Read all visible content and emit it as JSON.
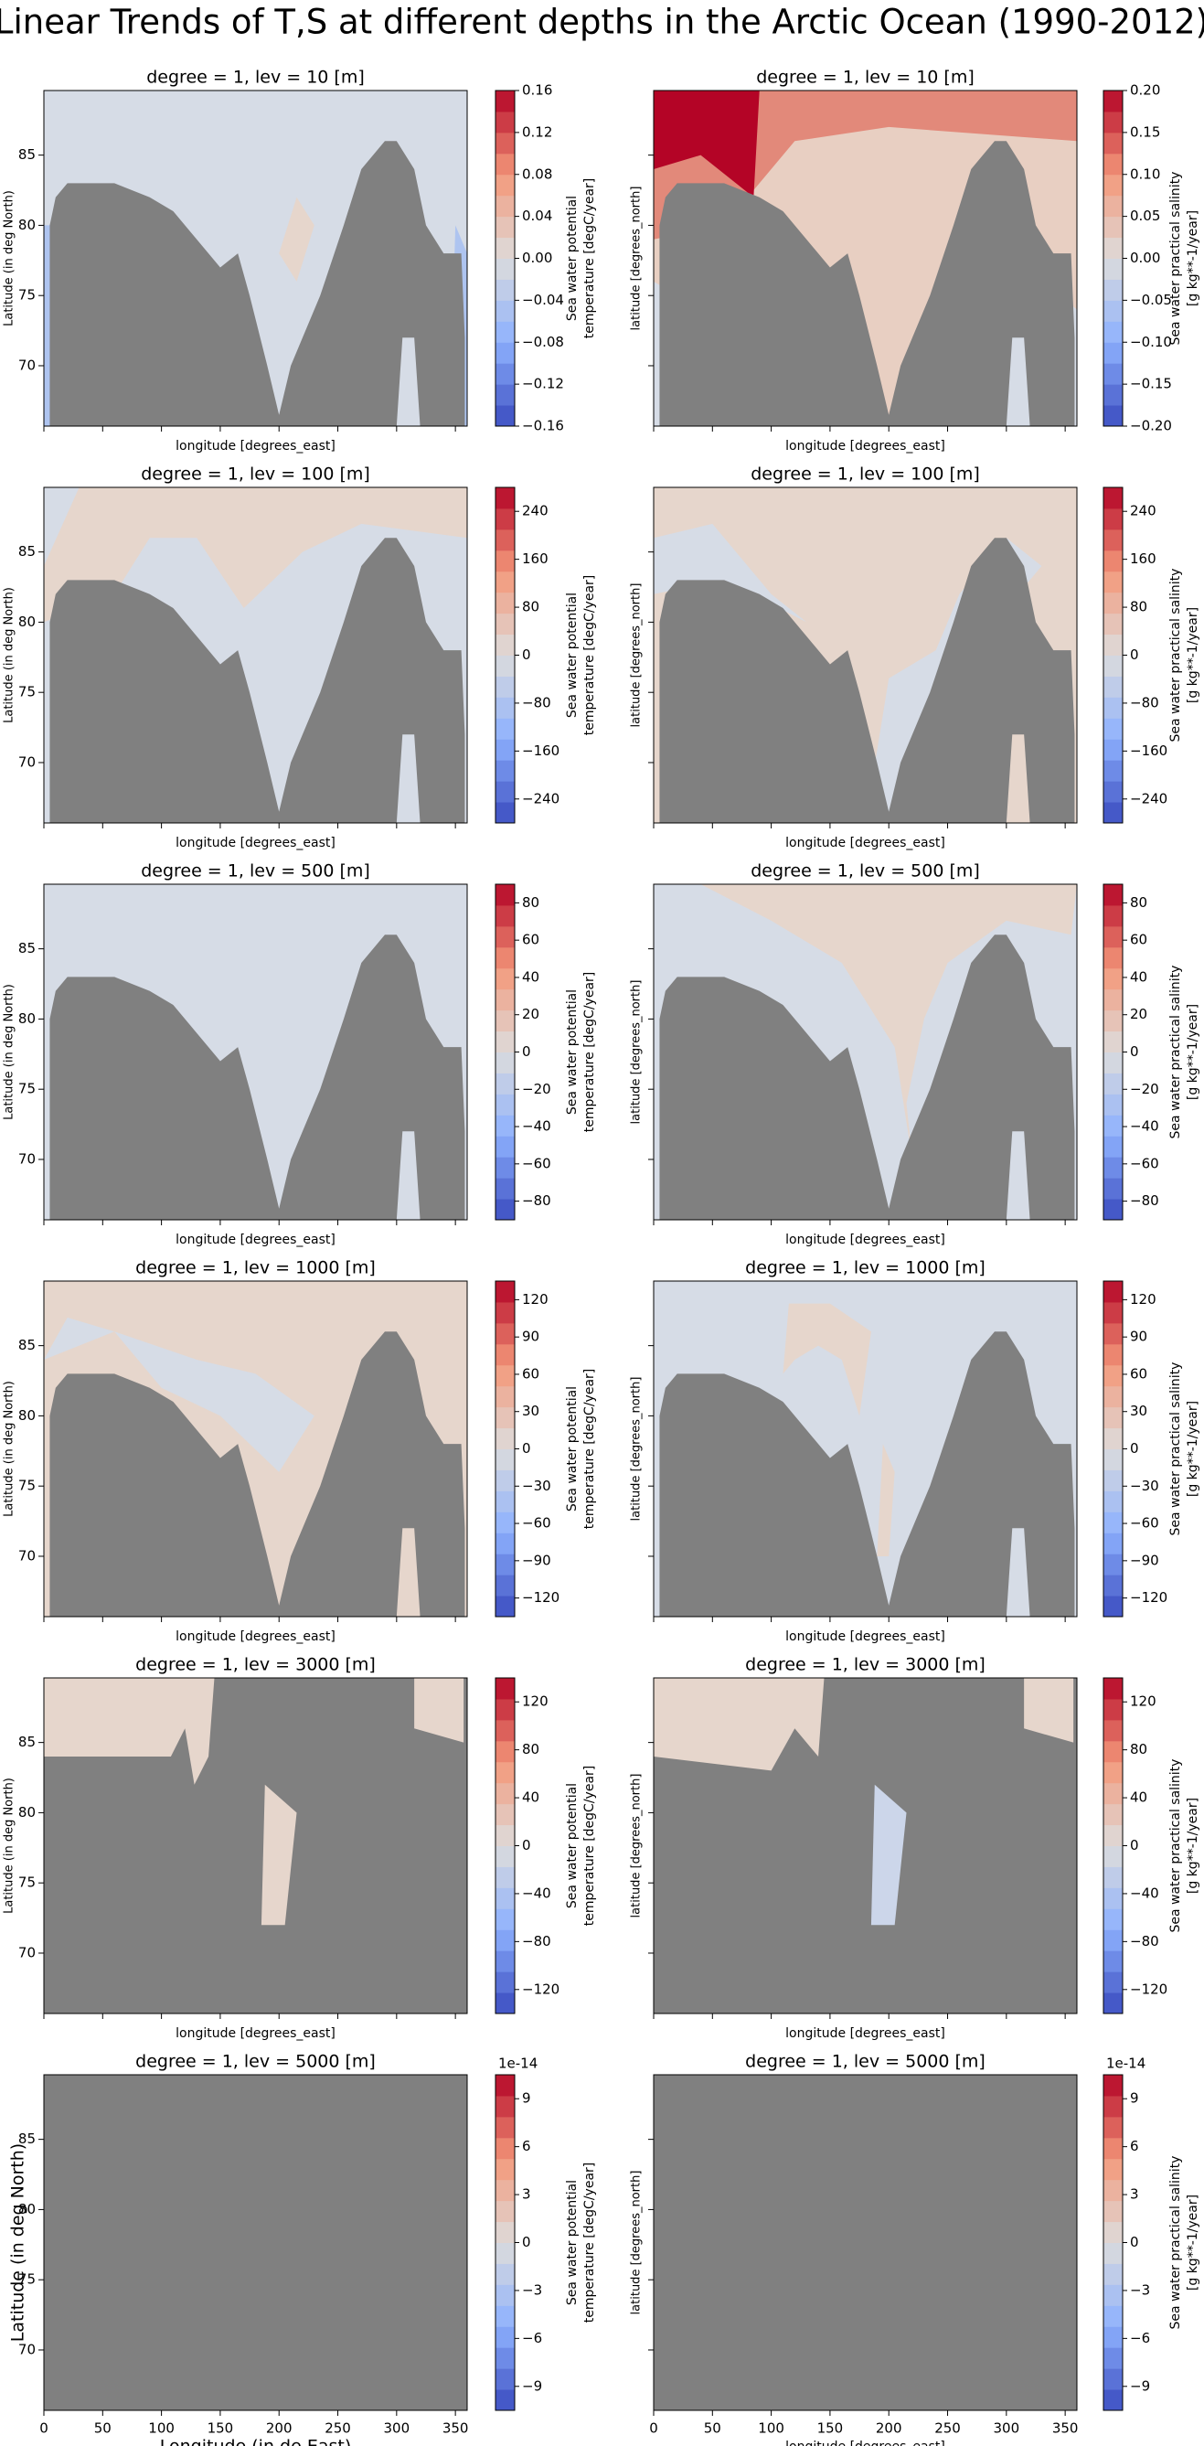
{
  "title": "Linear Trends of T,S at different depths in the Arctic Ocean (1990-2012)",
  "chart_data": [
    {
      "type": "contour",
      "title": "degree = 1, lev = 10 [m]",
      "xlabel": "longitude [degrees_east]",
      "ylabel": "Latitude (in deg North)",
      "xlim": [
        0,
        360
      ],
      "ylim": [
        65.7,
        89.6
      ],
      "xticks": [
        0,
        50,
        100,
        150,
        200,
        250,
        300,
        350
      ],
      "yticks": [
        70,
        75,
        80,
        85
      ],
      "colorbar_label": [
        "Sea water potential",
        "temperature [degC/year]"
      ],
      "clim": [
        -0.16,
        0.16
      ],
      "cticks": [
        0.16,
        0.12,
        0.08,
        0.04,
        {
          "value": 0,
          "label": "0.00"
        },
        {
          "value": -0.04,
          "label": "−0.04"
        },
        {
          "value": -0.08,
          "label": "−0.08"
        },
        {
          "value": -0.12,
          "label": "−0.12"
        },
        {
          "value": -0.16,
          "label": "−0.16"
        }
      ]
    },
    {
      "type": "contour",
      "title": "degree = 1, lev = 10 [m]",
      "xlabel": "longitude [degrees_east]",
      "ylabel": "latitude [degrees_north]",
      "xlim": [
        0,
        360
      ],
      "ylim": [
        65.7,
        89.6
      ],
      "xticks": [
        0,
        50,
        100,
        150,
        200,
        250,
        300,
        350
      ],
      "yticks": [
        70,
        75,
        80,
        85
      ],
      "colorbar_label": [
        "Sea water practical salinity",
        "[g kg**-1/year]"
      ],
      "clim": [
        -0.2,
        0.2
      ],
      "cticks": [
        {
          "value": 0.2,
          "label": "0.20"
        },
        0.15,
        {
          "value": 0.1,
          "label": "0.10"
        },
        0.05,
        {
          "value": 0,
          "label": "0.00"
        },
        {
          "value": -0.05,
          "label": "−0.05"
        },
        {
          "value": -0.1,
          "label": "−0.10"
        },
        {
          "value": -0.15,
          "label": "−0.15"
        },
        {
          "value": -0.2,
          "label": "−0.20"
        }
      ]
    },
    {
      "type": "contour",
      "title": "degree = 1, lev = 100 [m]",
      "xlabel": "longitude [degrees_east]",
      "ylabel": "Latitude (in deg North)",
      "xlim": [
        0,
        360
      ],
      "ylim": [
        65.7,
        89.6
      ],
      "xticks": [
        0,
        50,
        100,
        150,
        200,
        250,
        300,
        350
      ],
      "yticks": [
        70,
        75,
        80,
        85
      ],
      "colorbar_label": [
        "Sea water potential",
        "temperature [degC/year]"
      ],
      "clim": [
        -280,
        280
      ],
      "cticks": [
        240,
        160,
        80,
        0,
        {
          "value": -80,
          "label": "−80"
        },
        {
          "value": -160,
          "label": "−160"
        },
        {
          "value": -240,
          "label": "−240"
        }
      ]
    },
    {
      "type": "contour",
      "title": "degree = 1, lev = 100 [m]",
      "xlabel": "longitude [degrees_east]",
      "ylabel": "latitude [degrees_north]",
      "xlim": [
        0,
        360
      ],
      "ylim": [
        65.7,
        89.6
      ],
      "xticks": [
        0,
        50,
        100,
        150,
        200,
        250,
        300,
        350
      ],
      "yticks": [
        70,
        75,
        80,
        85
      ],
      "colorbar_label": [
        "Sea water practical salinity",
        "[g kg**-1/year]"
      ],
      "clim": [
        -280,
        280
      ],
      "cticks": [
        240,
        160,
        80,
        0,
        {
          "value": -80,
          "label": "−80"
        },
        {
          "value": -160,
          "label": "−160"
        },
        {
          "value": -240,
          "label": "−240"
        }
      ]
    },
    {
      "type": "contour",
      "title": "degree = 1, lev = 500 [m]",
      "xlabel": "longitude [degrees_east]",
      "ylabel": "Latitude (in deg North)",
      "xlim": [
        0,
        360
      ],
      "ylim": [
        65.7,
        89.6
      ],
      "xticks": [
        0,
        50,
        100,
        150,
        200,
        250,
        300,
        350
      ],
      "yticks": [
        70,
        75,
        80,
        85
      ],
      "colorbar_label": [
        "Sea water potential",
        "temperature [degC/year]"
      ],
      "clim": [
        -90,
        90
      ],
      "cticks": [
        80,
        60,
        40,
        20,
        0,
        {
          "value": -20,
          "label": "−20"
        },
        {
          "value": -40,
          "label": "−40"
        },
        {
          "value": -60,
          "label": "−60"
        },
        {
          "value": -80,
          "label": "−80"
        }
      ]
    },
    {
      "type": "contour",
      "title": "degree = 1, lev = 500 [m]",
      "xlabel": "longitude [degrees_east]",
      "ylabel": "latitude [degrees_north]",
      "xlim": [
        0,
        360
      ],
      "ylim": [
        65.7,
        89.6
      ],
      "xticks": [
        0,
        50,
        100,
        150,
        200,
        250,
        300,
        350
      ],
      "yticks": [
        70,
        75,
        80,
        85
      ],
      "colorbar_label": [
        "Sea water practical salinity",
        "[g kg**-1/year]"
      ],
      "clim": [
        -90,
        90
      ],
      "cticks": [
        80,
        60,
        40,
        20,
        0,
        {
          "value": -20,
          "label": "−20"
        },
        {
          "value": -40,
          "label": "−40"
        },
        {
          "value": -60,
          "label": "−60"
        },
        {
          "value": -80,
          "label": "−80"
        }
      ]
    },
    {
      "type": "contour",
      "title": "degree = 1, lev = 1000 [m]",
      "xlabel": "longitude [degrees_east]",
      "ylabel": "Latitude (in deg North)",
      "xlim": [
        0,
        360
      ],
      "ylim": [
        65.7,
        89.6
      ],
      "xticks": [
        0,
        50,
        100,
        150,
        200,
        250,
        300,
        350
      ],
      "yticks": [
        70,
        75,
        80,
        85
      ],
      "colorbar_label": [
        "Sea water potential",
        "temperature [degC/year]"
      ],
      "clim": [
        -135,
        135
      ],
      "cticks": [
        120,
        90,
        60,
        30,
        0,
        {
          "value": -30,
          "label": "−30"
        },
        {
          "value": -60,
          "label": "−60"
        },
        {
          "value": -90,
          "label": "−90"
        },
        {
          "value": -120,
          "label": "−120"
        }
      ]
    },
    {
      "type": "contour",
      "title": "degree = 1, lev = 1000 [m]",
      "xlabel": "longitude [degrees_east]",
      "ylabel": "latitude [degrees_north]",
      "xlim": [
        0,
        360
      ],
      "ylim": [
        65.7,
        89.6
      ],
      "xticks": [
        0,
        50,
        100,
        150,
        200,
        250,
        300,
        350
      ],
      "yticks": [
        70,
        75,
        80,
        85
      ],
      "colorbar_label": [
        "Sea water practical salinity",
        "[g kg**-1/year]"
      ],
      "clim": [
        -135,
        135
      ],
      "cticks": [
        120,
        90,
        60,
        30,
        0,
        {
          "value": -30,
          "label": "−30"
        },
        {
          "value": -60,
          "label": "−60"
        },
        {
          "value": -90,
          "label": "−90"
        },
        {
          "value": -120,
          "label": "−120"
        }
      ]
    },
    {
      "type": "contour",
      "title": "degree = 1, lev = 3000 [m]",
      "xlabel": "longitude [degrees_east]",
      "ylabel": "Latitude (in deg North)",
      "xlim": [
        0,
        360
      ],
      "ylim": [
        65.7,
        89.6
      ],
      "xticks": [
        0,
        50,
        100,
        150,
        200,
        250,
        300,
        350
      ],
      "yticks": [
        70,
        75,
        80,
        85
      ],
      "colorbar_label": [
        "Sea water potential",
        "temperature [degC/year]"
      ],
      "clim": [
        -140,
        140
      ],
      "cticks": [
        120,
        80,
        40,
        0,
        {
          "value": -40,
          "label": "−40"
        },
        {
          "value": -80,
          "label": "−80"
        },
        {
          "value": -120,
          "label": "−120"
        }
      ]
    },
    {
      "type": "contour",
      "title": "degree = 1, lev = 3000 [m]",
      "xlabel": "longitude [degrees_east]",
      "ylabel": "latitude [degrees_north]",
      "xlim": [
        0,
        360
      ],
      "ylim": [
        65.7,
        89.6
      ],
      "xticks": [
        0,
        50,
        100,
        150,
        200,
        250,
        300,
        350
      ],
      "yticks": [
        70,
        75,
        80,
        85
      ],
      "colorbar_label": [
        "Sea water practical salinity",
        "[g kg**-1/year]"
      ],
      "clim": [
        -140,
        140
      ],
      "cticks": [
        120,
        80,
        40,
        0,
        {
          "value": -40,
          "label": "−40"
        },
        {
          "value": -80,
          "label": "−80"
        },
        {
          "value": -120,
          "label": "−120"
        }
      ]
    },
    {
      "type": "contour",
      "title": "degree = 1, lev = 5000 [m]",
      "xlabel": "Longitude (in de East)",
      "ylabel": "Latitude (in deg North)",
      "xlim": [
        0,
        360
      ],
      "ylim": [
        65.7,
        89.6
      ],
      "xticks": [
        0,
        50,
        100,
        150,
        200,
        250,
        300,
        350
      ],
      "yticks": [
        70,
        75,
        80,
        85
      ],
      "colorbar_label": [
        "Sea water potential",
        "temperature [degC/year]"
      ],
      "clim": [
        -10.5,
        10.5
      ],
      "offset_label": "1e-14",
      "cticks": [
        9,
        6,
        3,
        0,
        {
          "value": -3,
          "label": "−3"
        },
        {
          "value": -6,
          "label": "−6"
        },
        {
          "value": -9,
          "label": "−9"
        }
      ]
    },
    {
      "type": "contour",
      "title": "degree = 1, lev = 5000 [m]",
      "xlabel": "longitude [degrees_east]",
      "ylabel": "latitude [degrees_north]",
      "xlim": [
        0,
        360
      ],
      "ylim": [
        65.7,
        89.6
      ],
      "xticks": [
        0,
        50,
        100,
        150,
        200,
        250,
        300,
        350
      ],
      "yticks": [
        70,
        75,
        80,
        85
      ],
      "colorbar_label": [
        "Sea water practical salinity",
        "[g kg**-1/year]"
      ],
      "clim": [
        -10.5,
        10.5
      ],
      "offset_label": "1e-14",
      "cticks": [
        9,
        6,
        3,
        0,
        {
          "value": -3,
          "label": "−3"
        },
        {
          "value": -6,
          "label": "−6"
        },
        {
          "value": -9,
          "label": "−9"
        }
      ]
    }
  ]
}
